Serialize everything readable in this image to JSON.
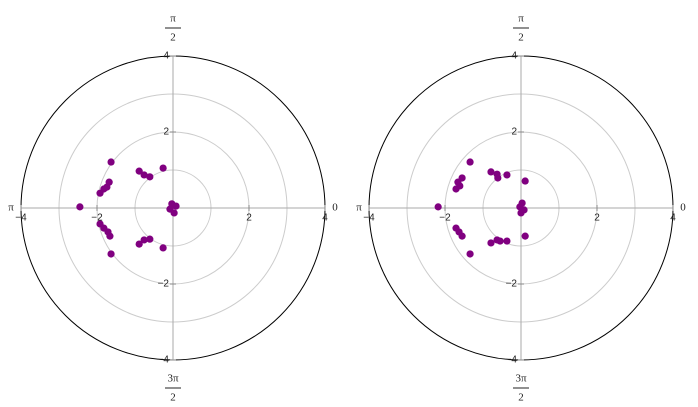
{
  "chart_data": [
    {
      "type": "scatter",
      "polar": true,
      "color": "#800080",
      "xlim": [
        -4,
        4
      ],
      "ylim": [
        -4,
        4
      ],
      "rticks": [
        1,
        2,
        3
      ],
      "xticks": [
        {
          "value": -4,
          "label": "−4"
        },
        {
          "value": -2,
          "label": "−2"
        },
        2,
        4
      ],
      "yticks": [
        {
          "value": -4,
          "label": "−4"
        },
        {
          "value": -2,
          "label": "−2"
        },
        2,
        4
      ],
      "angle_labels": [
        {
          "value": 0,
          "label": "0"
        },
        {
          "value": 90,
          "numerator": "π",
          "denominator": "2"
        },
        {
          "value": 180,
          "label": "π"
        },
        {
          "value": 270,
          "numerator": "3π",
          "denominator": "2"
        }
      ],
      "x": [
        -2.45,
        -1.63,
        -1.68,
        -1.74,
        -1.82,
        -1.92,
        -0.89,
        -0.76,
        -0.61,
        -0.26,
        -0.03,
        0.08,
        -0.08,
        0.03,
        -1.92,
        -1.82,
        -1.71,
        -1.66,
        -1.63,
        -0.89,
        -0.76,
        -0.61,
        -0.26
      ],
      "y": [
        0.03,
        1.21,
        0.68,
        0.55,
        0.5,
        0.39,
        0.97,
        0.87,
        0.82,
        1.05,
        0.11,
        0.05,
        -0.03,
        -0.13,
        -0.42,
        -0.53,
        -0.63,
        -0.74,
        -1.21,
        -0.95,
        -0.84,
        -0.82,
        -1.05
      ]
    },
    {
      "type": "scatter",
      "polar": true,
      "color": "#800080",
      "xlim": [
        -4,
        4
      ],
      "ylim": [
        -4,
        4
      ],
      "rticks": [
        1,
        2,
        3
      ],
      "xticks": [
        {
          "value": -4,
          "label": "−4"
        },
        {
          "value": -2,
          "label": "−2"
        },
        2,
        4
      ],
      "yticks": [
        {
          "value": -4,
          "label": "−4"
        },
        {
          "value": -2,
          "label": "−2"
        },
        2,
        4
      ],
      "angle_labels": [
        {
          "value": 0,
          "label": "0"
        },
        {
          "value": 90,
          "numerator": "π",
          "denominator": "2"
        },
        {
          "value": 180,
          "label": "π"
        },
        {
          "value": 270,
          "numerator": "3π",
          "denominator": "2"
        }
      ],
      "x": [
        -2.18,
        -1.34,
        -1.55,
        -1.66,
        -1.61,
        -1.71,
        -0.79,
        -0.63,
        -0.61,
        -0.37,
        0.11,
        0.03,
        -0.03,
        0.08,
        0,
        -1.71,
        -1.63,
        -1.55,
        -1.34,
        -0.79,
        -0.63,
        -0.55,
        -0.37,
        0.11
      ],
      "y": [
        0.03,
        1.21,
        0.79,
        0.68,
        0.58,
        0.5,
        0.95,
        0.89,
        0.79,
        0.87,
        0.71,
        0.13,
        0.03,
        -0.05,
        -0.13,
        -0.53,
        -0.63,
        -0.74,
        -1.21,
        -0.92,
        -0.84,
        -0.87,
        -0.87,
        -0.74
      ]
    }
  ]
}
